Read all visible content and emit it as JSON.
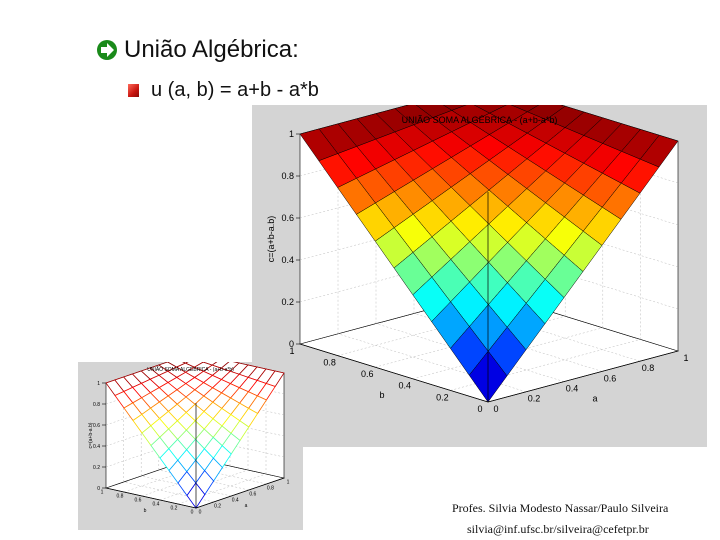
{
  "slide": {
    "title": "União Algébrica:",
    "formula": "u (a, b) = a+b - a*b",
    "credit_names": "Profes. Silvia Modesto Nassar/Paulo Silveira",
    "credit_emails": "silvia@inf.ufsc.br/silveira@cefetpr.br"
  },
  "colors": {
    "arrow": "#1a8a1a",
    "bullet": "#c8150f",
    "plot_bg": "#d4d4d4"
  },
  "chart_data": [
    {
      "type": "surface",
      "title": "UNIÃO SOMA ALGÉBRICA - (a+b-a*b)",
      "xlabel": "a",
      "ylabel": "b",
      "zlabel": "c=(a+b-a.b)",
      "xlim": [
        0,
        1
      ],
      "ylim": [
        0,
        1
      ],
      "zlim": [
        0,
        1
      ],
      "a_ticks": [
        "0",
        "0.2",
        "0.4",
        "0.6",
        "0.8",
        "1"
      ],
      "b_ticks": [
        "0",
        "0.2",
        "0.4",
        "0.6",
        "0.8",
        "1"
      ],
      "z_ticks": [
        "0",
        "0.2",
        "0.4",
        "0.6",
        "0.8",
        "1"
      ],
      "grid_steps": 10,
      "function": "a+b-a*b",
      "shading": "faceted jet colormap",
      "grid": true
    },
    {
      "type": "mesh",
      "title": "UNIÃO SOMA ALGÉBRICA - (a+b-a*b)",
      "xlabel": "a",
      "ylabel": "b",
      "zlabel": "c=(a+b-a.b)",
      "xlim": [
        0,
        1
      ],
      "ylim": [
        0,
        1
      ],
      "zlim": [
        0,
        1
      ],
      "a_ticks": [
        "0",
        "0.2",
        "0.4",
        "0.6",
        "0.8",
        "1"
      ],
      "b_ticks": [
        "0",
        "0.2",
        "0.4",
        "0.6",
        "0.8",
        "1"
      ],
      "z_ticks": [
        "0",
        "0.2",
        "0.4",
        "0.6",
        "0.8",
        "1"
      ],
      "grid_steps": 10,
      "function": "a+b-a*b",
      "shading": "mesh (wireframe)",
      "grid": true
    }
  ]
}
